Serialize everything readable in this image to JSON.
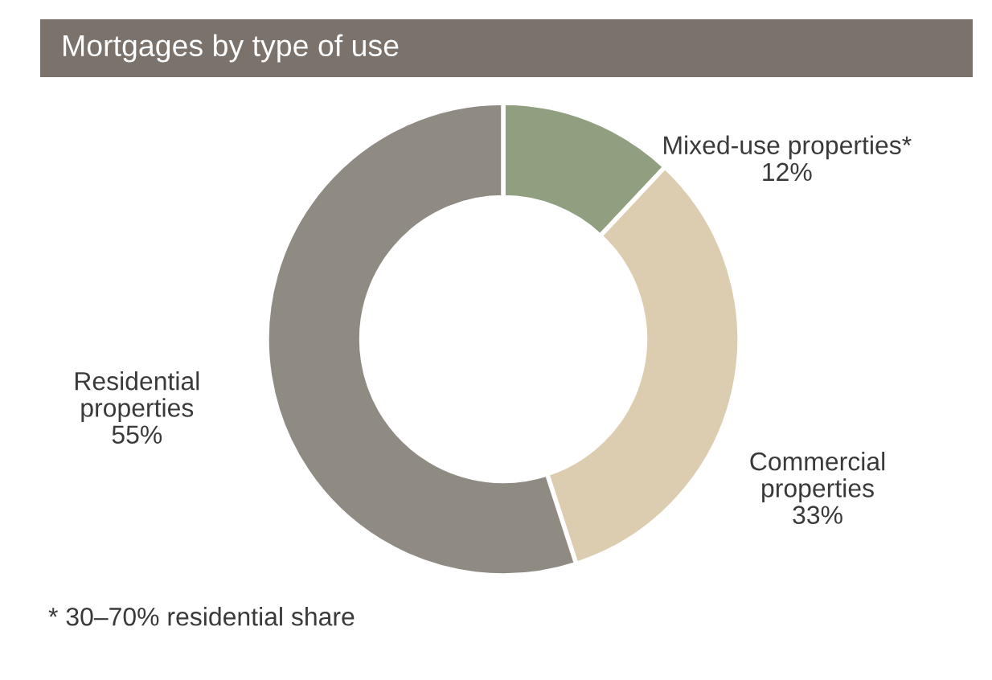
{
  "chart_data": {
    "type": "donut",
    "title": "Mortgages by type of use",
    "categories": [
      "Mixed-use properties*",
      "Commercial properties",
      "Residential properties"
    ],
    "values": [
      12,
      33,
      55
    ],
    "colors": [
      "#8f9f80",
      "#dccdb0",
      "#8f8a82"
    ],
    "value_labels": [
      "12%",
      "33%",
      "55%"
    ],
    "annotations": [
      "* 30–70% residential share"
    ]
  }
}
